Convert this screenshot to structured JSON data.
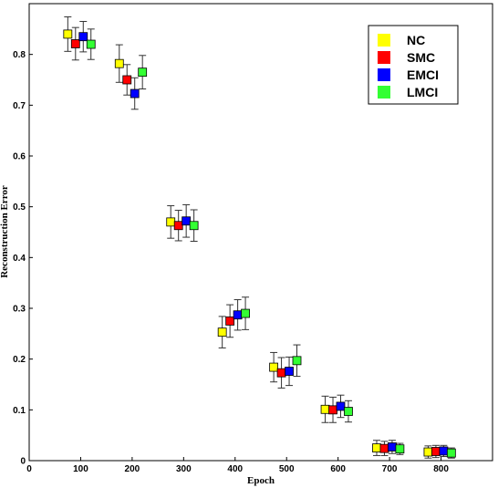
{
  "chart_data": {
    "type": "scatter",
    "title": "",
    "xlabel": "Epoch",
    "ylabel": "Reconstruction Error",
    "xlim": [
      0,
      900
    ],
    "ylim": [
      0,
      0.9
    ],
    "xticks": [
      0,
      100,
      200,
      300,
      400,
      500,
      600,
      700,
      800
    ],
    "yticks": [
      0,
      0.1,
      0.2,
      0.3,
      0.4,
      0.5,
      0.6,
      0.7,
      0.8
    ],
    "grid": false,
    "legend_position": "top-right",
    "error_bars": true,
    "series": [
      {
        "name": "NC",
        "color": "#ffff00",
        "x": [
          75,
          175,
          275,
          375,
          475,
          575,
          675,
          775
        ],
        "y": [
          0.84,
          0.782,
          0.47,
          0.253,
          0.184,
          0.101,
          0.025,
          0.017
        ],
        "err": [
          0.034,
          0.037,
          0.032,
          0.031,
          0.029,
          0.026,
          0.015,
          0.012
        ]
      },
      {
        "name": "SMC",
        "color": "#ff0000",
        "x": [
          90,
          190,
          290,
          390,
          490,
          590,
          690,
          790
        ],
        "y": [
          0.821,
          0.75,
          0.463,
          0.275,
          0.173,
          0.1,
          0.024,
          0.018
        ],
        "err": [
          0.032,
          0.03,
          0.03,
          0.032,
          0.03,
          0.025,
          0.014,
          0.012
        ]
      },
      {
        "name": "EMCI",
        "color": "#0000ff",
        "x": [
          105,
          205,
          305,
          405,
          505,
          605,
          705,
          805
        ],
        "y": [
          0.835,
          0.723,
          0.472,
          0.287,
          0.176,
          0.107,
          0.027,
          0.019
        ],
        "err": [
          0.03,
          0.031,
          0.032,
          0.03,
          0.028,
          0.022,
          0.013,
          0.011
        ]
      },
      {
        "name": "LMCI",
        "color": "#33ff33",
        "x": [
          120,
          220,
          320,
          420,
          520,
          620,
          720,
          820
        ],
        "y": [
          0.82,
          0.765,
          0.463,
          0.29,
          0.197,
          0.097,
          0.023,
          0.015
        ],
        "err": [
          0.03,
          0.033,
          0.031,
          0.032,
          0.031,
          0.021,
          0.011,
          0.01
        ]
      }
    ]
  }
}
